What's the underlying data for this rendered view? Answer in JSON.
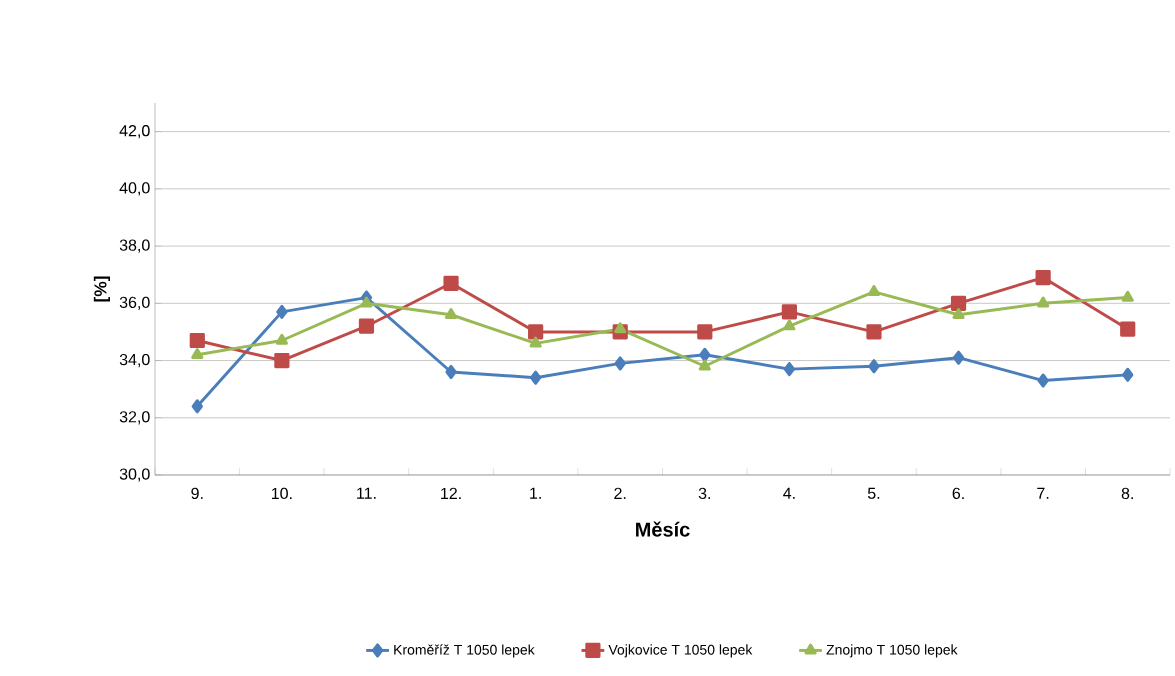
{
  "chart_data": {
    "type": "line",
    "xlabel": "Měsíc",
    "ylabel": "[%]",
    "categories": [
      "9.",
      "10.",
      "11.",
      "12.",
      "1.",
      "2.",
      "3.",
      "4.",
      "5.",
      "6.",
      "7.",
      "8."
    ],
    "series": [
      {
        "name": "Kroměříž T 1050  lepek",
        "color": "#4a7ebb",
        "marker": "diamond",
        "values": [
          32.4,
          35.7,
          36.2,
          33.6,
          33.4,
          33.9,
          34.2,
          33.7,
          33.8,
          34.1,
          33.3,
          33.5
        ]
      },
      {
        "name": "Vojkovice T 1050  lepek",
        "color": "#be4b48",
        "marker": "square",
        "values": [
          34.7,
          34.0,
          35.2,
          36.7,
          35.0,
          35.0,
          35.0,
          35.7,
          35.0,
          36.0,
          36.9,
          35.1
        ]
      },
      {
        "name": "Znojmo T 1050  lepek",
        "color": "#98b954",
        "marker": "triangle",
        "values": [
          34.2,
          34.7,
          36.0,
          35.6,
          34.6,
          35.1,
          33.8,
          35.2,
          36.4,
          35.6,
          36.0,
          36.2
        ]
      }
    ],
    "ylim": [
      30,
      43
    ],
    "yticks": [
      {
        "value": 30,
        "label": "30,0"
      },
      {
        "value": 32,
        "label": "32,0"
      },
      {
        "value": 34,
        "label": "34,0"
      },
      {
        "value": 36,
        "label": "36,0"
      },
      {
        "value": 38,
        "label": "38,0"
      },
      {
        "value": 40,
        "label": "40,0"
      },
      {
        "value": 42,
        "label": "42,0"
      }
    ],
    "grid": "y",
    "legend": "bottom"
  }
}
